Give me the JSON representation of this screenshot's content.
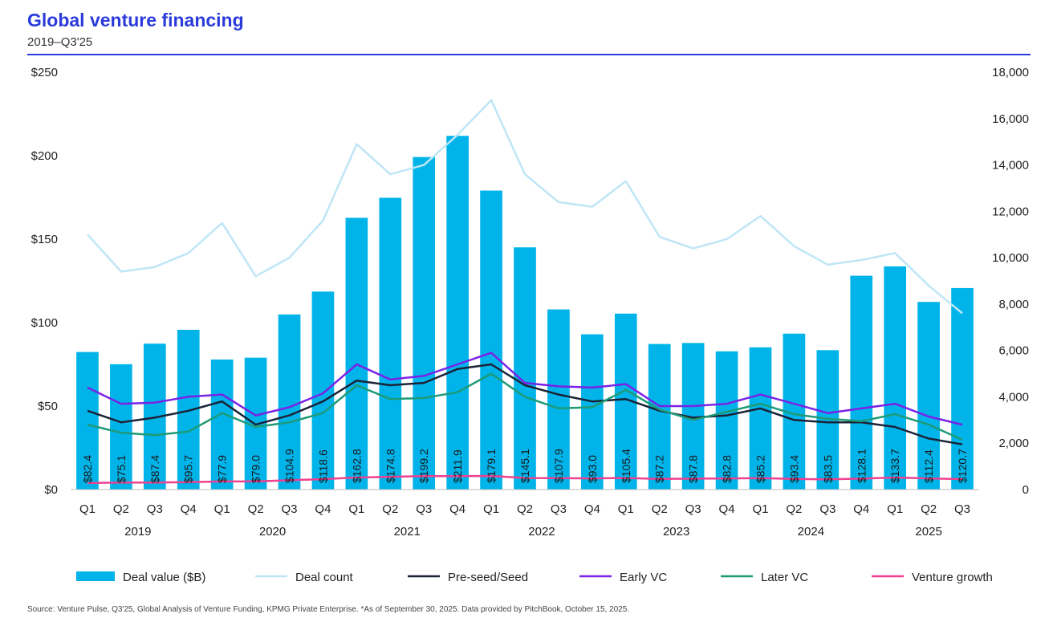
{
  "header": {
    "title": "Global venture financing",
    "subtitle": "2019–Q3'25"
  },
  "footer": {
    "source": "Source: Venture Pulse, Q3'25, Global Analysis of Venture Funding, KPMG Private Enterprise. *As of September 30, 2025. Data provided by PitchBook, October 15, 2025."
  },
  "chart_data": {
    "type": "bar",
    "categories": [
      "Q1",
      "Q2",
      "Q3",
      "Q4",
      "Q1",
      "Q2",
      "Q3",
      "Q4",
      "Q1",
      "Q2",
      "Q3",
      "Q4",
      "Q1",
      "Q2",
      "Q3",
      "Q4",
      "Q1",
      "Q2",
      "Q3",
      "Q4",
      "Q1",
      "Q2",
      "Q3",
      "Q4",
      "Q1",
      "Q2",
      "Q3"
    ],
    "years": [
      "2019",
      "2020",
      "2021",
      "2022",
      "2023",
      "2024",
      "2025"
    ],
    "left_axis": {
      "min": 0,
      "max": 250,
      "ticks": [
        0,
        50,
        100,
        150,
        200,
        250
      ],
      "tick_labels": [
        "$0",
        "$50",
        "$100",
        "$150",
        "$200",
        "$250"
      ]
    },
    "right_axis": {
      "min": 0,
      "max": 18000,
      "ticks": [
        0,
        2000,
        4000,
        6000,
        8000,
        10000,
        12000,
        14000,
        16000,
        18000
      ],
      "tick_labels": [
        "0",
        "2,000",
        "4,000",
        "6,000",
        "8,000",
        "10,000",
        "12,000",
        "14,000",
        "16,000",
        "18,000"
      ]
    },
    "bars": {
      "name": "Deal value ($B)",
      "color": "#00b4ea",
      "values": [
        82.4,
        75.1,
        87.4,
        95.7,
        77.9,
        79.0,
        104.9,
        118.6,
        162.8,
        174.8,
        199.2,
        211.9,
        179.1,
        145.1,
        107.9,
        93.0,
        105.4,
        87.2,
        87.8,
        82.8,
        85.2,
        93.4,
        83.5,
        128.1,
        133.7,
        112.4,
        120.7
      ],
      "labels": [
        "$82.4",
        "$75.1",
        "$87.4",
        "$95.7",
        "$77.9",
        "$79.0",
        "$104.9",
        "$118.6",
        "$162.8",
        "$174.8",
        "$199.2",
        "$211.9",
        "$179.1",
        "$145.1",
        "$107.9",
        "$93.0",
        "$105.4",
        "$87.2",
        "$87.8",
        "$82.8",
        "$85.2",
        "$93.4",
        "$83.5",
        "$128.1",
        "$133.7",
        "$112.4",
        "$120.7"
      ]
    },
    "series": [
      {
        "name": "Deal count",
        "axis": "right",
        "color": "#bfe6f6",
        "values": [
          11000,
          9400,
          9600,
          10200,
          11500,
          9200,
          10000,
          11600,
          14900,
          13600,
          14000,
          15300,
          16800,
          13600,
          12400,
          12200,
          13300,
          10900,
          10400,
          10800,
          11800,
          10500,
          9700,
          9900,
          10200,
          8800,
          7600
        ]
      },
      {
        "name": "Pre-seed/Seed",
        "axis": "right",
        "color": "#1b2336",
        "values": [
          3400,
          2900,
          3100,
          3400,
          3800,
          2800,
          3200,
          3800,
          4700,
          4500,
          4600,
          5200,
          5400,
          4500,
          4100,
          3800,
          3900,
          3400,
          3100,
          3200,
          3500,
          3000,
          2900,
          2900,
          2700,
          2200,
          1950
        ]
      },
      {
        "name": "Early VC",
        "axis": "right",
        "color": "#7a22e6",
        "values": [
          4400,
          3700,
          3750,
          4000,
          4100,
          3200,
          3550,
          4150,
          5400,
          4750,
          4900,
          5400,
          5900,
          4600,
          4450,
          4400,
          4550,
          3600,
          3600,
          3700,
          4100,
          3700,
          3300,
          3500,
          3700,
          3150,
          2800
        ]
      },
      {
        "name": "Later VC",
        "axis": "right",
        "color": "#1e9a77",
        "values": [
          2800,
          2450,
          2350,
          2500,
          3300,
          2700,
          2900,
          3300,
          4500,
          3900,
          3950,
          4200,
          5000,
          4000,
          3500,
          3550,
          4300,
          3450,
          3000,
          3350,
          3700,
          3250,
          3050,
          2950,
          3250,
          2800,
          2150
        ]
      },
      {
        "name": "Venture growth",
        "axis": "right",
        "color": "#f0408f",
        "values": [
          280,
          300,
          300,
          320,
          350,
          350,
          400,
          450,
          520,
          550,
          580,
          580,
          590,
          500,
          490,
          480,
          500,
          460,
          470,
          480,
          490,
          460,
          440,
          470,
          520,
          480,
          450
        ]
      }
    ],
    "legend_position": "bottom",
    "grid": false
  }
}
